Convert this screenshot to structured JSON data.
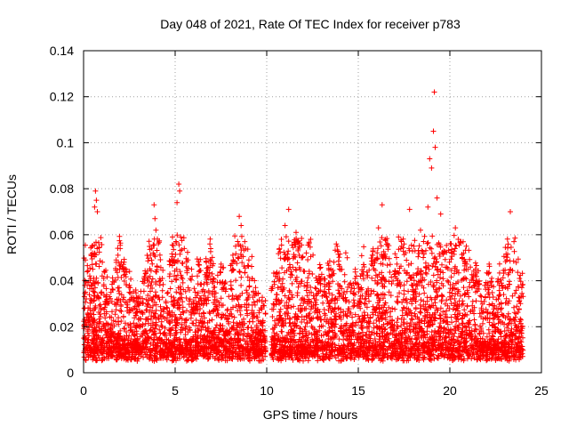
{
  "chart_data": {
    "type": "scatter",
    "title": "Day 048 of 2021, Rate Of TEC Index for receiver p783",
    "xlabel": "GPS time / hours",
    "ylabel": "ROTI / TECUs",
    "xlim": [
      0,
      25
    ],
    "ylim": [
      0,
      0.14
    ],
    "xticks": [
      0,
      5,
      10,
      15,
      20,
      25
    ],
    "xtick_labels": [
      "0",
      "5",
      "10",
      "15",
      "20",
      "25"
    ],
    "yticks": [
      0,
      0.02,
      0.04,
      0.06,
      0.08,
      0.1,
      0.12,
      0.14
    ],
    "ytick_labels": [
      "0",
      "0.02",
      "0.04",
      "0.06",
      "0.08",
      "0.1",
      "0.12",
      "0.14"
    ],
    "grid": true,
    "marker": "+",
    "color": "#ff0000",
    "gap_hours": [
      9.95,
      10.25
    ],
    "data_range_hours": [
      0,
      24
    ],
    "series": [
      {
        "name": "ROTI",
        "points": [
          [
            0.05,
            0.021
          ],
          [
            0.1,
            0.049
          ],
          [
            0.2,
            0.038
          ],
          [
            0.35,
            0.028
          ],
          [
            0.5,
            0.045
          ],
          [
            0.6,
            0.072
          ],
          [
            0.65,
            0.079
          ],
          [
            0.7,
            0.075
          ],
          [
            0.75,
            0.07
          ],
          [
            0.8,
            0.033
          ],
          [
            1.1,
            0.041
          ],
          [
            1.6,
            0.036
          ],
          [
            1.9,
            0.048
          ],
          [
            2.0,
            0.054
          ],
          [
            2.2,
            0.044
          ],
          [
            2.5,
            0.038
          ],
          [
            2.9,
            0.031
          ],
          [
            3.3,
            0.039
          ],
          [
            3.8,
            0.052
          ],
          [
            3.85,
            0.073
          ],
          [
            3.9,
            0.067
          ],
          [
            3.95,
            0.062
          ],
          [
            4.3,
            0.041
          ],
          [
            4.7,
            0.047
          ],
          [
            5.1,
            0.074
          ],
          [
            5.2,
            0.082
          ],
          [
            5.25,
            0.079
          ],
          [
            5.3,
            0.059
          ],
          [
            5.5,
            0.054
          ],
          [
            5.7,
            0.049
          ],
          [
            5.9,
            0.045
          ],
          [
            6.3,
            0.044
          ],
          [
            6.9,
            0.056
          ],
          [
            7.5,
            0.046
          ],
          [
            8.3,
            0.055
          ],
          [
            8.5,
            0.068
          ],
          [
            8.6,
            0.064
          ],
          [
            8.8,
            0.057
          ],
          [
            9.2,
            0.041
          ],
          [
            10.5,
            0.043
          ],
          [
            10.8,
            0.058
          ],
          [
            11.0,
            0.064
          ],
          [
            11.2,
            0.071
          ],
          [
            11.6,
            0.061
          ],
          [
            11.9,
            0.05
          ],
          [
            12.4,
            0.058
          ],
          [
            12.9,
            0.047
          ],
          [
            13.5,
            0.045
          ],
          [
            13.8,
            0.056
          ],
          [
            14.4,
            0.05
          ],
          [
            14.9,
            0.042
          ],
          [
            15.3,
            0.047
          ],
          [
            15.8,
            0.053
          ],
          [
            16.1,
            0.063
          ],
          [
            16.3,
            0.073
          ],
          [
            16.6,
            0.056
          ],
          [
            17.2,
            0.059
          ],
          [
            17.5,
            0.056
          ],
          [
            17.8,
            0.071
          ],
          [
            18.4,
            0.062
          ],
          [
            18.8,
            0.072
          ],
          [
            18.9,
            0.093
          ],
          [
            19.0,
            0.089
          ],
          [
            19.1,
            0.105
          ],
          [
            19.15,
            0.122
          ],
          [
            19.2,
            0.098
          ],
          [
            19.3,
            0.076
          ],
          [
            19.5,
            0.069
          ],
          [
            20.1,
            0.052
          ],
          [
            20.3,
            0.063
          ],
          [
            20.6,
            0.057
          ],
          [
            20.9,
            0.055
          ],
          [
            21.4,
            0.045
          ],
          [
            22.1,
            0.043
          ],
          [
            22.7,
            0.038
          ],
          [
            23.1,
            0.049
          ],
          [
            23.3,
            0.07
          ],
          [
            23.5,
            0.057
          ],
          [
            23.8,
            0.041
          ]
        ]
      }
    ]
  }
}
